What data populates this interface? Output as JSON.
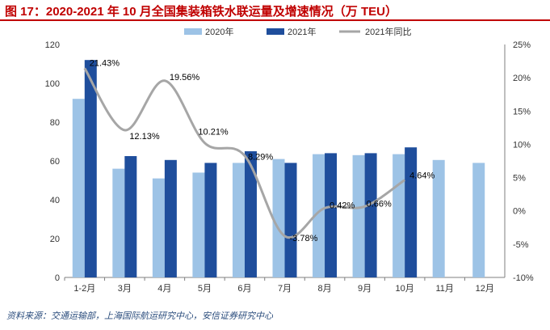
{
  "title": "图 17：2020-2021 年 10 月全国集装箱铁水联运量及增速情况（万 TEU）",
  "source": "资料来源：交通运输部，上海国际航运研究中心，安信证券研究中心",
  "colors": {
    "y2020": "#9dc3e6",
    "y2021": "#1f4e9c",
    "growth": "#a6a6a6",
    "title": "#c00000"
  },
  "chart_data": {
    "type": "bar",
    "categories": [
      "1-2月",
      "3月",
      "4月",
      "5月",
      "6月",
      "7月",
      "8月",
      "9月",
      "10月",
      "11月",
      "12月"
    ],
    "series": [
      {
        "name": "2020年",
        "type": "bar",
        "axis": "left",
        "values": [
          92,
          56,
          51,
          54,
          59,
          61,
          63.5,
          63,
          63.5,
          60.5,
          59
        ]
      },
      {
        "name": "2021年",
        "type": "bar",
        "axis": "left",
        "values": [
          112,
          62.5,
          60.5,
          59,
          65,
          59,
          null,
          64,
          null,
          null,
          null
        ]
      },
      {
        "name": "2021年同比",
        "type": "line",
        "axis": "right",
        "values": [
          21.43,
          12.13,
          19.56,
          10.21,
          8.29,
          -3.78,
          0.42,
          0.66,
          4.64,
          null,
          null
        ]
      }
    ],
    "bars_2021_fill": [
      112,
      62.5,
      60.5,
      59,
      65,
      59,
      64,
      64,
      67,
      null,
      null
    ],
    "data_labels": [
      "21.43%",
      "12.13%",
      "19.56%",
      "10.21%",
      "8.29%",
      "-3.78%",
      "0.42%",
      "0.66%",
      "4.64%"
    ],
    "y_left": {
      "ylim": [
        0,
        120
      ],
      "ticks": [
        "0",
        "20",
        "40",
        "60",
        "80",
        "100",
        "120"
      ]
    },
    "y_right": {
      "ylim": [
        -10,
        25
      ],
      "ticks": [
        "-10%",
        "-5%",
        "0%",
        "5%",
        "10%",
        "15%",
        "20%",
        "25%"
      ]
    },
    "grid": false,
    "legend_position": "top"
  }
}
